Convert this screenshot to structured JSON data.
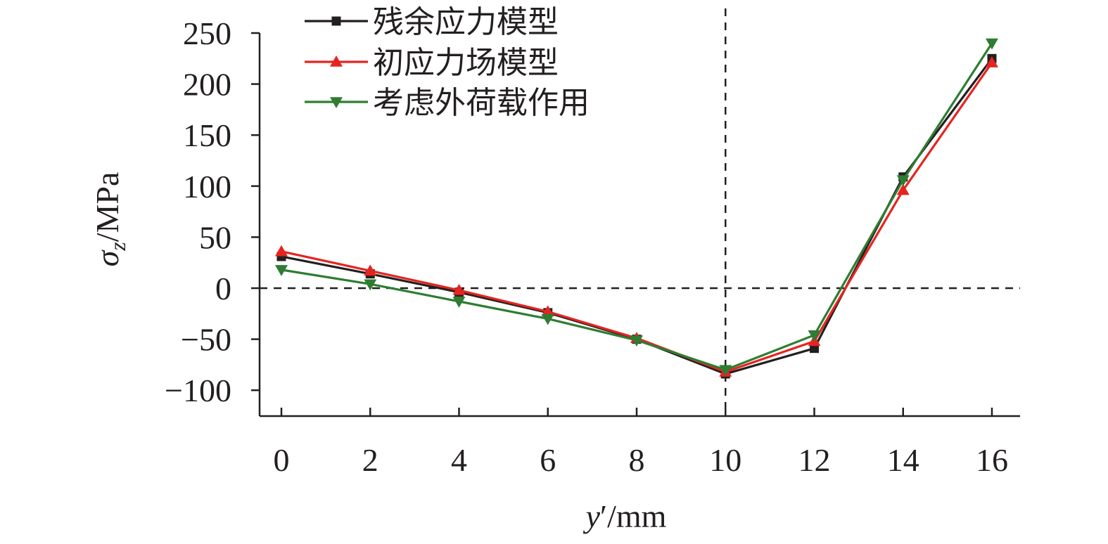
{
  "chart_data": {
    "type": "line",
    "x": [
      0,
      2,
      4,
      6,
      8,
      10,
      12,
      14,
      16
    ],
    "xlim": [
      -0.5,
      16.5
    ],
    "ylim": [
      -125,
      250
    ],
    "xticks": [
      "0",
      "2",
      "4",
      "6",
      "8",
      "10",
      "12",
      "14",
      "16"
    ],
    "yticks": [
      "250",
      "200",
      "150",
      "100",
      "50",
      "0",
      "−50",
      "−100"
    ],
    "ytick_values": [
      250,
      200,
      150,
      100,
      50,
      0,
      -50,
      -100
    ],
    "xlabel": {
      "var": "y",
      "prime": "′",
      "unit": "/mm"
    },
    "ylabel": {
      "var": "σ",
      "sub": "z",
      "unit": "/MPa"
    },
    "reference_lines": {
      "horizontal_y": 0,
      "vertical_x": 10
    },
    "legend_position": "top-left",
    "grid": false,
    "series": [
      {
        "name": "残余应力模型",
        "color": "#231f20",
        "marker": "square",
        "values": [
          31,
          14,
          -4,
          -24,
          -50,
          -84,
          -59,
          109,
          225
        ]
      },
      {
        "name": "初应力场模型",
        "color": "#e52421",
        "marker": "triangle-up",
        "values": [
          36,
          17,
          -2,
          -23,
          -49,
          -82,
          -52,
          96,
          221
        ]
      },
      {
        "name": "考虑外荷载作用",
        "color": "#2e7d32",
        "marker": "triangle-down",
        "values": [
          18,
          4,
          -13,
          -30,
          -51,
          -80,
          -46,
          106,
          240
        ]
      }
    ]
  }
}
